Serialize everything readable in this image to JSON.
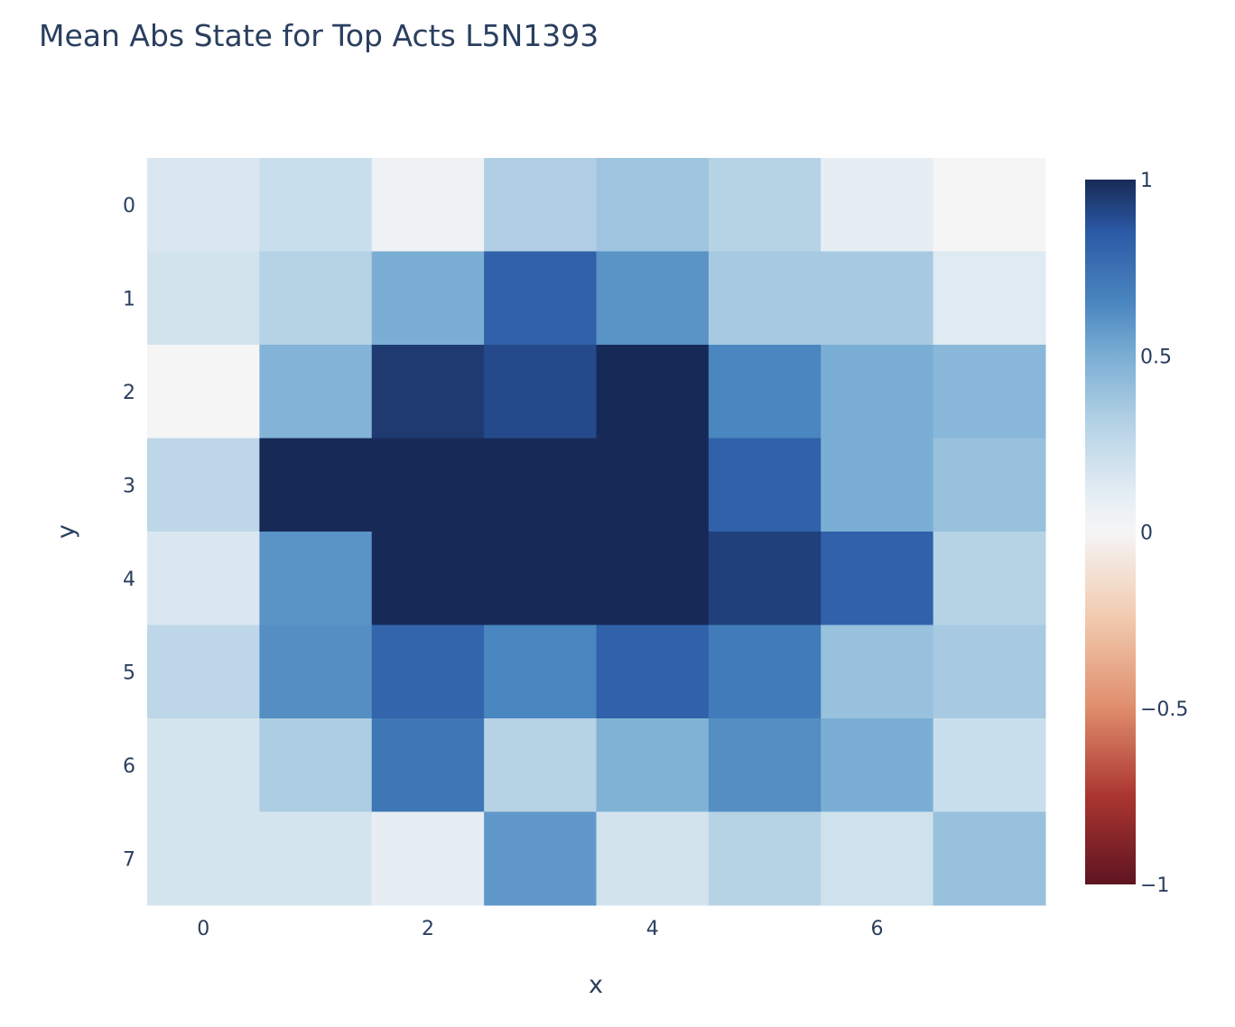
{
  "chart_data": {
    "type": "heatmap",
    "title": "Mean Abs State for Top Acts L5N1393",
    "xlabel": "x",
    "ylabel": "y",
    "x": [
      0,
      1,
      2,
      3,
      4,
      5,
      6,
      7
    ],
    "y": [
      0,
      1,
      2,
      3,
      4,
      5,
      6,
      7
    ],
    "x_ticks": [
      "0",
      "2",
      "4",
      "6"
    ],
    "y_ticks": [
      "0",
      "1",
      "2",
      "3",
      "4",
      "5",
      "6",
      "7"
    ],
    "z": [
      [
        0.15,
        0.22,
        0.05,
        0.32,
        0.38,
        0.3,
        0.1,
        0.0
      ],
      [
        0.18,
        0.3,
        0.5,
        0.82,
        0.6,
        0.35,
        0.35,
        0.13
      ],
      [
        0.0,
        0.47,
        0.95,
        0.9,
        1.0,
        0.65,
        0.5,
        0.45
      ],
      [
        0.27,
        1.0,
        1.0,
        1.0,
        1.0,
        0.82,
        0.5,
        0.4
      ],
      [
        0.15,
        0.6,
        1.0,
        1.0,
        1.0,
        0.93,
        0.82,
        0.3
      ],
      [
        0.27,
        0.62,
        0.8,
        0.65,
        0.82,
        0.7,
        0.4,
        0.35
      ],
      [
        0.17,
        0.33,
        0.72,
        0.3,
        0.48,
        0.62,
        0.5,
        0.22
      ],
      [
        0.17,
        0.17,
        0.1,
        0.58,
        0.18,
        0.3,
        0.2,
        0.4
      ]
    ],
    "zlim": [
      -1,
      1
    ],
    "colorscale": [
      [
        -1,
        "#5e1520"
      ],
      [
        -0.75,
        "#aa3530"
      ],
      [
        -0.5,
        "#df8d6c"
      ],
      [
        -0.25,
        "#f1c9ad"
      ],
      [
        0,
        "#f5f5f5"
      ],
      [
        0.1,
        "#e6eef4"
      ],
      [
        0.3,
        "#b6d3e6"
      ],
      [
        0.5,
        "#7aaed4"
      ],
      [
        0.65,
        "#4a86bf"
      ],
      [
        0.85,
        "#2b5aa6"
      ],
      [
        1,
        "#172a57"
      ]
    ],
    "colorbar_ticks": [
      "1",
      "0.5",
      "0",
      "−0.5",
      "−1"
    ],
    "colorbar_tick_values": [
      1,
      0.5,
      0,
      -0.5,
      -1
    ],
    "y_axis_reversed": true,
    "grid": false
  }
}
